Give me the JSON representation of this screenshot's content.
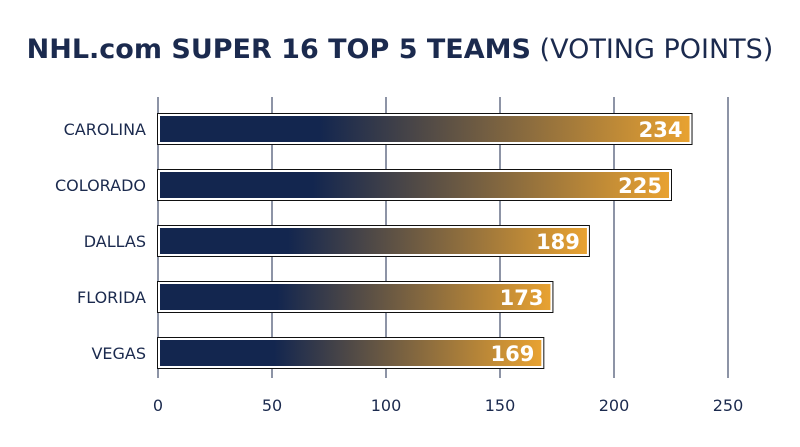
{
  "title_main": "NHL.com SUPER 16 TOP 5 TEAMS",
  "title_sub": "(VOTING POINTS)",
  "colors": {
    "navy": "#13264f",
    "gold": "#e8a231",
    "outline": "#111111",
    "grid": "#1b2a4e"
  },
  "chart_data": {
    "type": "bar",
    "orientation": "horizontal",
    "title": "NHL.com SUPER 16 TOP 5 TEAMS (VOTING POINTS)",
    "categories": [
      "CAROLINA",
      "COLORADO",
      "DALLAS",
      "FLORIDA",
      "VEGAS"
    ],
    "values": [
      234,
      225,
      189,
      173,
      169
    ],
    "xlim": [
      0,
      250
    ],
    "xticks": [
      0,
      50,
      100,
      150,
      200,
      250
    ],
    "grid": true,
    "data_labels": true
  }
}
